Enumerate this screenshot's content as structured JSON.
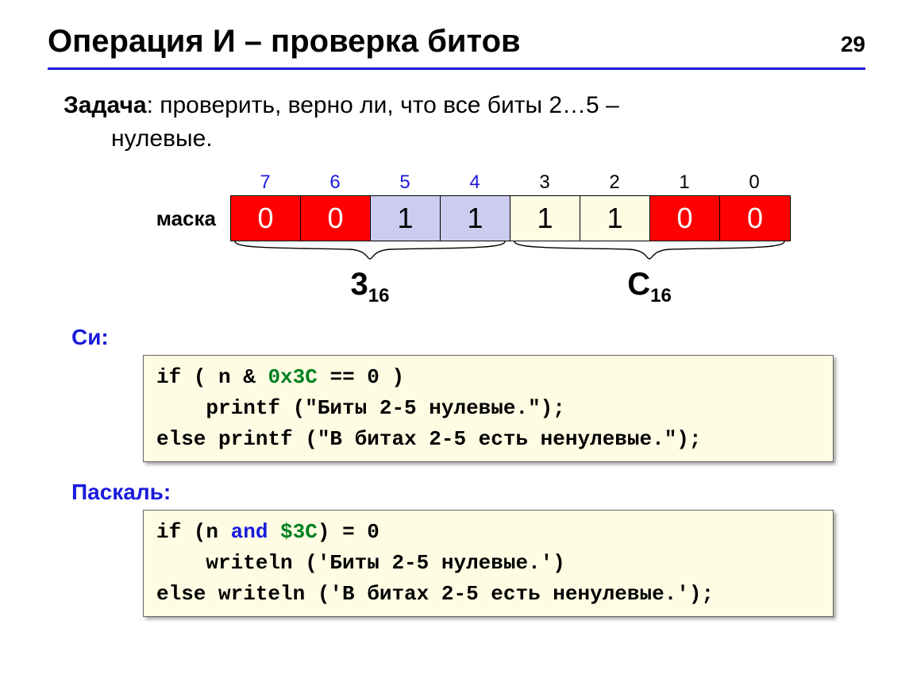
{
  "page_number": "29",
  "title": "Операция И – проверка битов",
  "task": {
    "label": "Задача",
    "text_part1": ": проверить, верно ли, что все биты 2…5 –",
    "text_part2": "нулевые."
  },
  "colors": {
    "accent": "#1a1adc",
    "header_blue": "#1a1adc",
    "cell_red_bg": "#ff0000",
    "cell_red_text": "#ffffff",
    "cell_blue_bg": "#ccccf0",
    "cell_yellow_bg": "#fefde3",
    "code_bg": "#fefde3",
    "code_hex": "#008020"
  },
  "bit_table": {
    "mask_label": "маска",
    "headers": [
      {
        "label": "7",
        "color": "#1a1adc"
      },
      {
        "label": "6",
        "color": "#1a1adc"
      },
      {
        "label": "5",
        "color": "#1a1adc"
      },
      {
        "label": "4",
        "color": "#1a1adc"
      },
      {
        "label": "3",
        "color": "#000000"
      },
      {
        "label": "2",
        "color": "#000000"
      },
      {
        "label": "1",
        "color": "#000000"
      },
      {
        "label": "0",
        "color": "#000000"
      }
    ],
    "cells": [
      {
        "value": "0",
        "bg": "#ff0000",
        "text_color": "#ffffff"
      },
      {
        "value": "0",
        "bg": "#ff0000",
        "text_color": "#ffffff"
      },
      {
        "value": "1",
        "bg": "#ccccf0",
        "text_color": "#000000"
      },
      {
        "value": "1",
        "bg": "#ccccf0",
        "text_color": "#000000"
      },
      {
        "value": "1",
        "bg": "#fefde3",
        "text_color": "#000000"
      },
      {
        "value": "1",
        "bg": "#fefde3",
        "text_color": "#000000"
      },
      {
        "value": "0",
        "bg": "#ff0000",
        "text_color": "#ffffff"
      },
      {
        "value": "0",
        "bg": "#ff0000",
        "text_color": "#ffffff"
      }
    ]
  },
  "hex": {
    "left_main": "3",
    "left_sub": "16",
    "right_main": "C",
    "right_sub": "16"
  },
  "c_section": {
    "label": "Си:",
    "line1_pre": "if ( n & ",
    "line1_hex": "0x3C",
    "line1_post": " == 0 )",
    "line2": "    printf (\"Биты 2-5 нулевые.\");",
    "line3": "else printf (\"В битах 2-5 есть ненулевые.\");"
  },
  "pascal_section": {
    "label": "Паскаль:",
    "line1_pre": "if (n ",
    "line1_kw": "and",
    "line1_mid": " ",
    "line1_hex": "$3C",
    "line1_post": ") = 0",
    "line2": "    writeln ('Биты 2-5 нулевые.')",
    "line3": "else writeln ('В битах 2-5 есть ненулевые.');"
  }
}
